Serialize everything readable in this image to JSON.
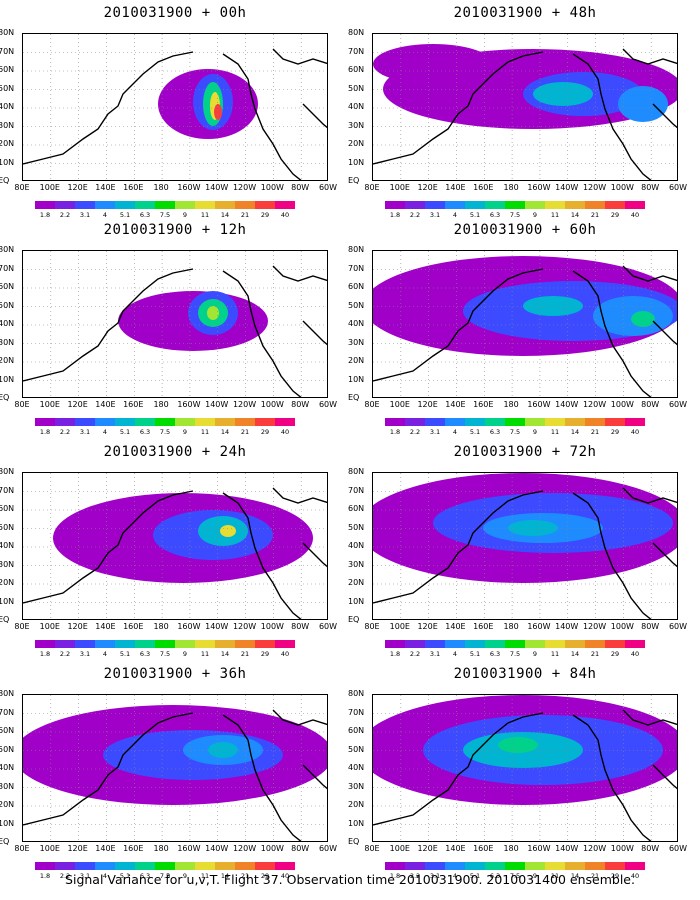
{
  "panels": [
    {
      "title": "2010031900 + 00h"
    },
    {
      "title": "2010031900 + 48h"
    },
    {
      "title": "2010031900 + 12h"
    },
    {
      "title": "2010031900 + 60h"
    },
    {
      "title": "2010031900 + 24h"
    },
    {
      "title": "2010031900 + 72h"
    },
    {
      "title": "2010031900 + 36h"
    },
    {
      "title": "2010031900 + 84h"
    }
  ],
  "lat_labels": [
    "80N",
    "70N",
    "60N",
    "50N",
    "40N",
    "30N",
    "20N",
    "10N",
    "EQ"
  ],
  "lon_labels": [
    "80E",
    "100E",
    "120E",
    "140E",
    "160E",
    "180",
    "160W",
    "140W",
    "120W",
    "100W",
    "80W",
    "60W"
  ],
  "colorbar": {
    "labels": [
      "1.8",
      "2.2",
      "3.1",
      "4",
      "5.1",
      "6.3",
      "7.5",
      "9",
      "11",
      "14",
      "21",
      "29",
      "40"
    ],
    "colors": [
      "#a000c8",
      "#7a20e0",
      "#3c4bff",
      "#1e8cff",
      "#00b4d2",
      "#00d28c",
      "#00dc00",
      "#a0e632",
      "#e6dc32",
      "#e6af2d",
      "#f08228",
      "#fa3c3c",
      "#f00082"
    ]
  },
  "caption": "Signal Variance for u,v,T. Flight 37. Observation time 2010031900. 2010031400 ensemble."
}
